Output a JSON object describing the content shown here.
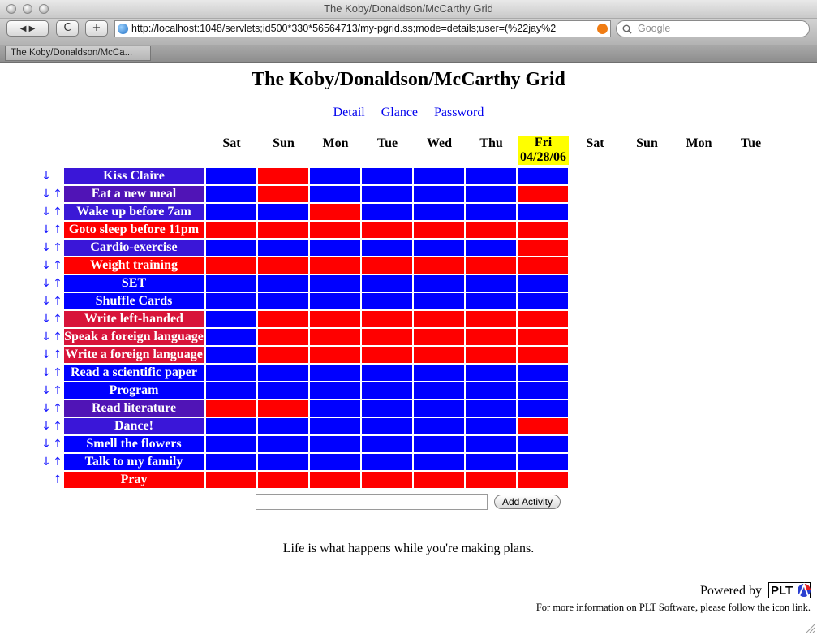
{
  "browser": {
    "window_title": "The Koby/Donaldson/McCarthy Grid",
    "url": "http://localhost:1048/servlets;id500*330*56564713/my-pgrid.ss;mode=details;user=(%22jay%2",
    "search_placeholder": "Google",
    "tab_label": "The Koby/Donaldson/McCa...",
    "back_glyph": "◀ ▶",
    "reload_glyph": "C",
    "add_glyph": "+"
  },
  "page": {
    "title": "The Koby/Donaldson/McCarthy Grid",
    "nav": [
      "Detail",
      "Glance",
      "Password"
    ],
    "days": [
      "Sat",
      "Sun",
      "Mon",
      "Tue",
      "Wed",
      "Thu",
      "Fri",
      "Sat",
      "Sun",
      "Mon",
      "Tue"
    ],
    "today_index": 6,
    "today_date": "04/28/06",
    "down_arrow": "↓",
    "up_arrow": "↑",
    "colors": {
      "done": "#0000ff",
      "missed": "#ff0000",
      "today_bg": "#ffff00",
      "link": "#0000ee"
    },
    "activities": [
      {
        "name": "Kiss Claire",
        "color": "#3a16d8",
        "down": true,
        "up": false,
        "cells": [
          "B",
          "R",
          "B",
          "B",
          "B",
          "B",
          "B"
        ]
      },
      {
        "name": "Eat a new meal",
        "color": "#5014b6",
        "down": true,
        "up": true,
        "cells": [
          "B",
          "R",
          "B",
          "B",
          "B",
          "B",
          "R"
        ]
      },
      {
        "name": "Wake up before 7am",
        "color": "#3b19d6",
        "down": true,
        "up": true,
        "cells": [
          "B",
          "B",
          "R",
          "B",
          "B",
          "B",
          "B"
        ]
      },
      {
        "name": "Goto sleep before 11pm",
        "color": "#ff0000",
        "down": true,
        "up": true,
        "cells": [
          "R",
          "R",
          "R",
          "R",
          "R",
          "R",
          "R"
        ]
      },
      {
        "name": "Cardio-exercise",
        "color": "#3a16d8",
        "down": true,
        "up": true,
        "cells": [
          "B",
          "B",
          "B",
          "B",
          "B",
          "B",
          "R"
        ]
      },
      {
        "name": "Weight training",
        "color": "#ff0000",
        "down": true,
        "up": true,
        "cells": [
          "R",
          "R",
          "R",
          "R",
          "R",
          "R",
          "R"
        ]
      },
      {
        "name": "SET",
        "color": "#0000ff",
        "down": true,
        "up": true,
        "cells": [
          "B",
          "B",
          "B",
          "B",
          "B",
          "B",
          "B"
        ]
      },
      {
        "name": "Shuffle Cards",
        "color": "#0000ff",
        "down": true,
        "up": true,
        "cells": [
          "B",
          "B",
          "B",
          "B",
          "B",
          "B",
          "B"
        ]
      },
      {
        "name": "Write left-handed",
        "color": "#d8143a",
        "down": true,
        "up": true,
        "cells": [
          "B",
          "R",
          "R",
          "R",
          "R",
          "R",
          "R"
        ]
      },
      {
        "name": "Speak a foreign language",
        "color": "#d8143a",
        "down": true,
        "up": true,
        "cells": [
          "B",
          "R",
          "R",
          "R",
          "R",
          "R",
          "R"
        ]
      },
      {
        "name": "Write a foreign language",
        "color": "#d8143a",
        "down": true,
        "up": true,
        "cells": [
          "B",
          "R",
          "R",
          "R",
          "R",
          "R",
          "R"
        ]
      },
      {
        "name": "Read a scientific paper",
        "color": "#0000ff",
        "down": true,
        "up": true,
        "cells": [
          "B",
          "B",
          "B",
          "B",
          "B",
          "B",
          "B"
        ]
      },
      {
        "name": "Program",
        "color": "#0000ff",
        "down": true,
        "up": true,
        "cells": [
          "B",
          "B",
          "B",
          "B",
          "B",
          "B",
          "B"
        ]
      },
      {
        "name": "Read literature",
        "color": "#5014b6",
        "down": true,
        "up": true,
        "cells": [
          "R",
          "R",
          "B",
          "B",
          "B",
          "B",
          "B"
        ]
      },
      {
        "name": "Dance!",
        "color": "#3a16d8",
        "down": true,
        "up": true,
        "cells": [
          "B",
          "B",
          "B",
          "B",
          "B",
          "B",
          "R"
        ]
      },
      {
        "name": "Smell the flowers",
        "color": "#0000ff",
        "down": true,
        "up": true,
        "cells": [
          "B",
          "B",
          "B",
          "B",
          "B",
          "B",
          "B"
        ]
      },
      {
        "name": "Talk to my family",
        "color": "#0000ff",
        "down": true,
        "up": true,
        "cells": [
          "B",
          "B",
          "B",
          "B",
          "B",
          "B",
          "B"
        ]
      },
      {
        "name": "Pray",
        "color": "#ff0000",
        "down": false,
        "up": true,
        "cells": [
          "R",
          "R",
          "R",
          "R",
          "R",
          "R",
          "R"
        ]
      }
    ],
    "add_activity": {
      "value": "",
      "button_label": "Add Activity"
    },
    "quote": "Life is what happens while you're making plans.",
    "powered_by": "Powered by",
    "logo_text": "PLT",
    "footnote": "For more information on PLT Software, please follow the icon link."
  }
}
